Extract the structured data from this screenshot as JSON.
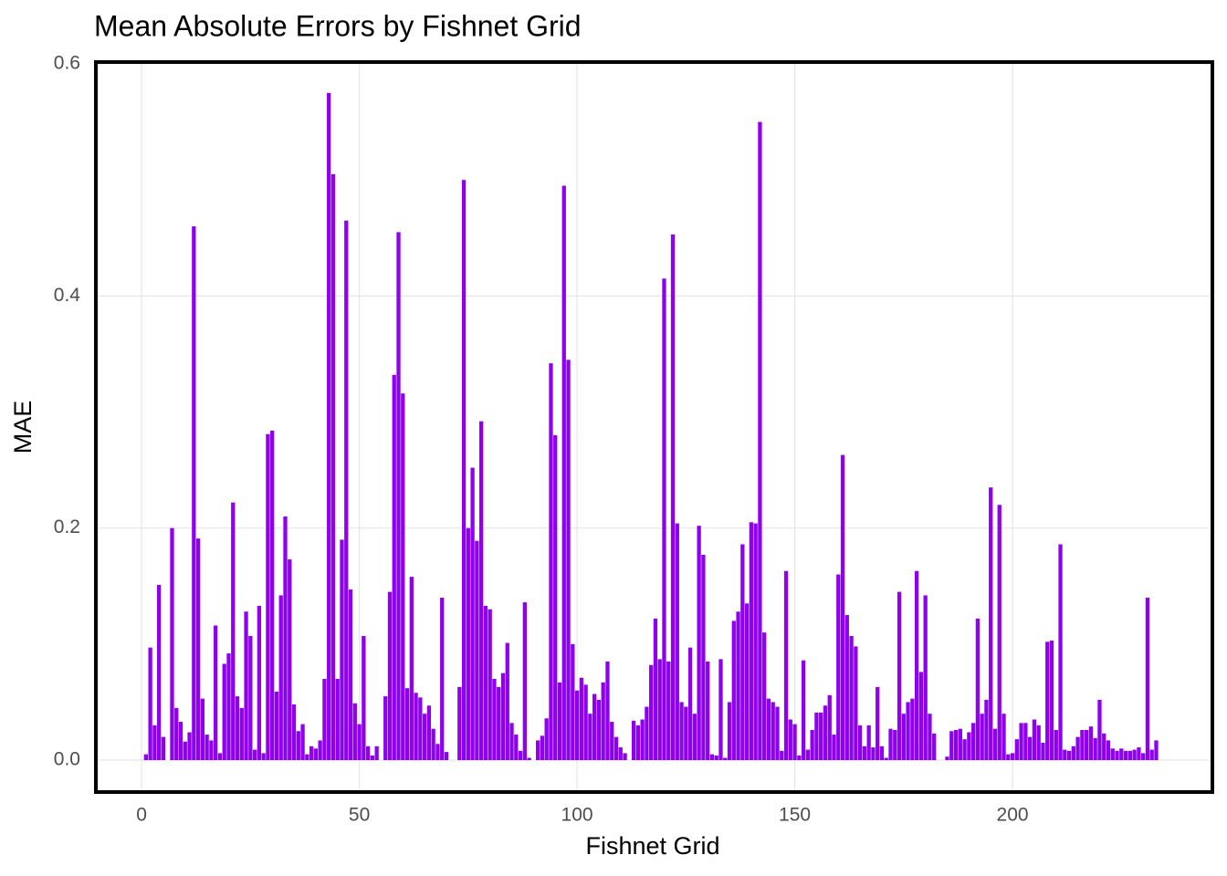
{
  "chart_data": {
    "type": "bar",
    "title": "Mean Absolute Errors by Fishnet Grid",
    "x_label": "Fishnet Grid",
    "y_label": "MAE",
    "color": "#8f00ef",
    "grid": true,
    "x": [
      1,
      2,
      3,
      4,
      5,
      6,
      7,
      8,
      9,
      10,
      11,
      12,
      13,
      14,
      15,
      16,
      17,
      18,
      19,
      20,
      21,
      22,
      23,
      24,
      25,
      26,
      27,
      28,
      29,
      30,
      31,
      32,
      33,
      34,
      35,
      36,
      37,
      38,
      39,
      40,
      41,
      42,
      43,
      44,
      45,
      46,
      47,
      48,
      49,
      50,
      51,
      52,
      53,
      54,
      55,
      56,
      57,
      58,
      59,
      60,
      61,
      62,
      63,
      64,
      65,
      66,
      67,
      68,
      69,
      70,
      71,
      72,
      73,
      74,
      75,
      76,
      77,
      78,
      79,
      80,
      81,
      82,
      83,
      84,
      85,
      86,
      87,
      88,
      89,
      90,
      91,
      92,
      93,
      94,
      95,
      96,
      97,
      98,
      99,
      100,
      101,
      102,
      103,
      104,
      105,
      106,
      107,
      108,
      109,
      110,
      111,
      112,
      113,
      114,
      115,
      116,
      117,
      118,
      119,
      120,
      121,
      122,
      123,
      124,
      125,
      126,
      127,
      128,
      129,
      130,
      131,
      132,
      133,
      134,
      135,
      136,
      137,
      138,
      139,
      140,
      141,
      142,
      143,
      144,
      145,
      146,
      147,
      148,
      149,
      150,
      151,
      152,
      153,
      154,
      155,
      156,
      157,
      158,
      159,
      160,
      161,
      162,
      163,
      164,
      165,
      166,
      167,
      168,
      169,
      170,
      171,
      172,
      173,
      174,
      175,
      176,
      177,
      178,
      179,
      180,
      181,
      182,
      183,
      184,
      185,
      186,
      187,
      188,
      189,
      190,
      191,
      192,
      193,
      194,
      195,
      196,
      197,
      198,
      199,
      200,
      201,
      202,
      203,
      204,
      205,
      206,
      207,
      208,
      209,
      210,
      211,
      212,
      213,
      214,
      215,
      216,
      217,
      218,
      219,
      220,
      221,
      222,
      223,
      224,
      225,
      226,
      227,
      228,
      229,
      230,
      231,
      232,
      233
    ],
    "values": [
      0.005,
      0.097,
      0.03,
      0.151,
      0.02,
      0,
      0.2,
      0.045,
      0.033,
      0.016,
      0.024,
      0.46,
      0.191,
      0.053,
      0.022,
      0.017,
      0.116,
      0.006,
      0.083,
      0.092,
      0.222,
      0.055,
      0.045,
      0.128,
      0.107,
      0.009,
      0.133,
      0.006,
      0.281,
      0.284,
      0.059,
      0.142,
      0.21,
      0.173,
      0.048,
      0.025,
      0.031,
      0.005,
      0.012,
      0.01,
      0.017,
      0.07,
      0.575,
      0.505,
      0.07,
      0.19,
      0.465,
      0.147,
      0.049,
      0.031,
      0.107,
      0.012,
      0.004,
      0.012,
      0,
      0.055,
      0.145,
      0.332,
      0.455,
      0.316,
      0.062,
      0.158,
      0.058,
      0.054,
      0.04,
      0.047,
      0.027,
      0.014,
      0.14,
      0.007,
      0,
      0,
      0.063,
      0.5,
      0.2,
      0.252,
      0.189,
      0.292,
      0.133,
      0.13,
      0.07,
      0.063,
      0.075,
      0.101,
      0.032,
      0.022,
      0.008,
      0.136,
      0.002,
      0,
      0.017,
      0.021,
      0.036,
      0.342,
      0.28,
      0.067,
      0.495,
      0.345,
      0.1,
      0.06,
      0.071,
      0.065,
      0.04,
      0.057,
      0.052,
      0.067,
      0.085,
      0.033,
      0.02,
      0.011,
      0.006,
      0,
      0.034,
      0.03,
      0.035,
      0.046,
      0.082,
      0.122,
      0.087,
      0.415,
      0.085,
      0.453,
      0.204,
      0.05,
      0.046,
      0.097,
      0.04,
      0.202,
      0.177,
      0.085,
      0.005,
      0.004,
      0.087,
      0.002,
      0.05,
      0.12,
      0.128,
      0.186,
      0.135,
      0.205,
      0.204,
      0.55,
      0.11,
      0.053,
      0.05,
      0.046,
      0.008,
      0.163,
      0.035,
      0.031,
      0.004,
      0.086,
      0.009,
      0.026,
      0.041,
      0.041,
      0.047,
      0.056,
      0.022,
      0.16,
      0.263,
      0.125,
      0.107,
      0.098,
      0.03,
      0.012,
      0.03,
      0.011,
      0.063,
      0.012,
      0.002,
      0.027,
      0.026,
      0.145,
      0.04,
      0.05,
      0.053,
      0.163,
      0.076,
      0.142,
      0.04,
      0.023,
      0,
      0,
      0.003,
      0.025,
      0.026,
      0.027,
      0.018,
      0.024,
      0.032,
      0.122,
      0.04,
      0.052,
      0.235,
      0.027,
      0.22,
      0.04,
      0.005,
      0.006,
      0.018,
      0.032,
      0.032,
      0.02,
      0.035,
      0.03,
      0.015,
      0.102,
      0.103,
      0.026,
      0.186,
      0.009,
      0.008,
      0.012,
      0.02,
      0.026,
      0.026,
      0.029,
      0.019,
      0.052,
      0.023,
      0.017,
      0.01,
      0.008,
      0.01,
      0.008,
      0.008,
      0.009,
      0.011,
      0.006,
      0.14,
      0.009,
      0.017
    ],
    "xlim": [
      -10.5,
      245.9
    ],
    "xticks": [
      0,
      50,
      100,
      150,
      200
    ],
    "ylim": [
      -0.0275,
      0.6016
    ],
    "yticks": [
      {
        "value": 0,
        "label": "0.0"
      },
      0.2,
      0.4,
      0.6
    ]
  }
}
